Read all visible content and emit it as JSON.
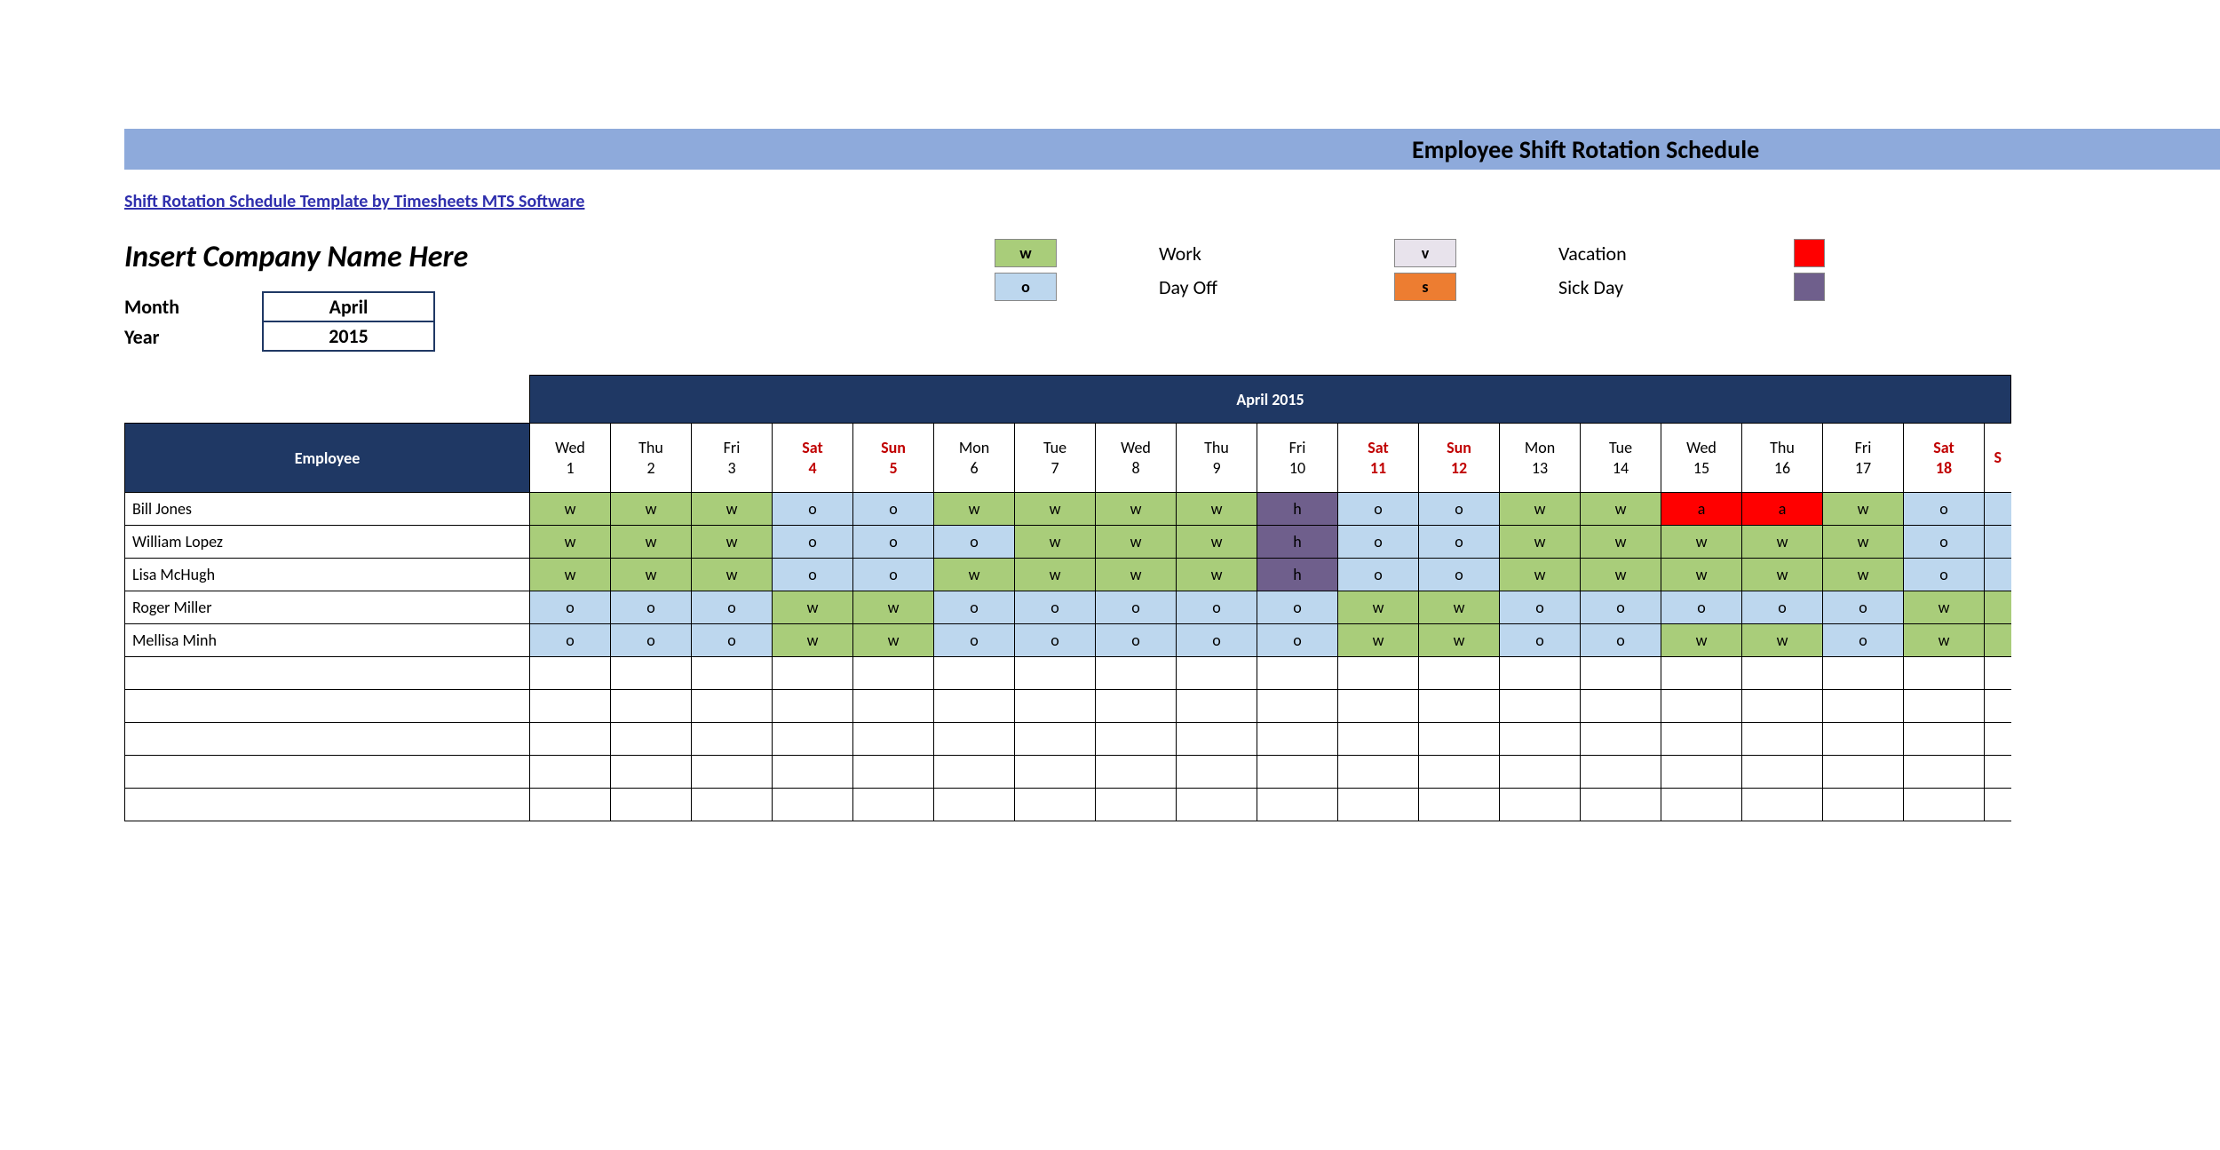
{
  "colors": {
    "title_bar_bg": "#8eaadb",
    "link_color": "#2f2fad",
    "dark_blue": "#1f3864",
    "work_bg": "#a9cd7a",
    "dayoff_bg": "#bdd7ee",
    "vacation_bg": "#e8e3ec",
    "sick_bg": "#ed7d31",
    "holiday_bg": "#6f5f8c",
    "absent_bg": "#ff0000",
    "weekend_text": "#c00000"
  },
  "header": {
    "title": "Employee Shift Rotation Schedule",
    "template_link": "Shift Rotation Schedule Template by Timesheets MTS Software",
    "company_placeholder": "Insert Company Name Here",
    "month_label": "Month",
    "year_label": "Year",
    "month_value": "April",
    "year_value": "2015"
  },
  "legend": [
    {
      "code": "w",
      "label": "Work",
      "bg": "#a9cd7a"
    },
    {
      "code": "o",
      "label": "Day Off",
      "bg": "#bdd7ee"
    },
    {
      "code": "v",
      "label": "Vacation",
      "bg": "#e8e3ec"
    },
    {
      "code": "s",
      "label": "Sick Day",
      "bg": "#ed7d31"
    }
  ],
  "extra_swatches": [
    {
      "bg": "#ff0000"
    },
    {
      "bg": "#6f5f8c"
    }
  ],
  "schedule": {
    "month_banner": "April 2015",
    "employee_header": "Employee",
    "days": [
      {
        "dow": "Wed",
        "num": "1",
        "weekend": false
      },
      {
        "dow": "Thu",
        "num": "2",
        "weekend": false
      },
      {
        "dow": "Fri",
        "num": "3",
        "weekend": false
      },
      {
        "dow": "Sat",
        "num": "4",
        "weekend": true
      },
      {
        "dow": "Sun",
        "num": "5",
        "weekend": true
      },
      {
        "dow": "Mon",
        "num": "6",
        "weekend": false
      },
      {
        "dow": "Tue",
        "num": "7",
        "weekend": false
      },
      {
        "dow": "Wed",
        "num": "8",
        "weekend": false
      },
      {
        "dow": "Thu",
        "num": "9",
        "weekend": false
      },
      {
        "dow": "Fri",
        "num": "10",
        "weekend": false
      },
      {
        "dow": "Sat",
        "num": "11",
        "weekend": true
      },
      {
        "dow": "Sun",
        "num": "12",
        "weekend": true
      },
      {
        "dow": "Mon",
        "num": "13",
        "weekend": false
      },
      {
        "dow": "Tue",
        "num": "14",
        "weekend": false
      },
      {
        "dow": "Wed",
        "num": "15",
        "weekend": false
      },
      {
        "dow": "Thu",
        "num": "16",
        "weekend": false
      },
      {
        "dow": "Fri",
        "num": "17",
        "weekend": false
      },
      {
        "dow": "Sat",
        "num": "18",
        "weekend": true
      },
      {
        "dow": "S",
        "num": "",
        "weekend": true,
        "cut": true
      }
    ],
    "code_bg": {
      "w": "#a9cd7a",
      "o": "#bdd7ee",
      "h": "#6f5f8c",
      "a": "#ff0000",
      "v": "#e8e3ec",
      "s": "#ed7d31"
    },
    "employees": [
      {
        "name": "Bill Jones",
        "shifts": [
          "w",
          "w",
          "w",
          "o",
          "o",
          "w",
          "w",
          "w",
          "w",
          "h",
          "o",
          "o",
          "w",
          "w",
          "a",
          "a",
          "w",
          "o",
          ""
        ]
      },
      {
        "name": "William Lopez",
        "shifts": [
          "w",
          "w",
          "w",
          "o",
          "o",
          "o",
          "w",
          "w",
          "w",
          "h",
          "o",
          "o",
          "w",
          "w",
          "w",
          "w",
          "w",
          "o",
          ""
        ]
      },
      {
        "name": "Lisa McHugh",
        "shifts": [
          "w",
          "w",
          "w",
          "o",
          "o",
          "w",
          "w",
          "w",
          "w",
          "h",
          "o",
          "o",
          "w",
          "w",
          "w",
          "w",
          "w",
          "o",
          ""
        ]
      },
      {
        "name": "Roger Miller",
        "shifts": [
          "o",
          "o",
          "o",
          "w",
          "w",
          "o",
          "o",
          "o",
          "o",
          "o",
          "w",
          "w",
          "o",
          "o",
          "o",
          "o",
          "o",
          "w",
          ""
        ]
      },
      {
        "name": "Mellisa Minh",
        "shifts": [
          "o",
          "o",
          "o",
          "w",
          "w",
          "o",
          "o",
          "o",
          "o",
          "o",
          "w",
          "w",
          "o",
          "o",
          "w",
          "w",
          "o",
          "w",
          ""
        ]
      }
    ],
    "blank_rows": 5
  }
}
